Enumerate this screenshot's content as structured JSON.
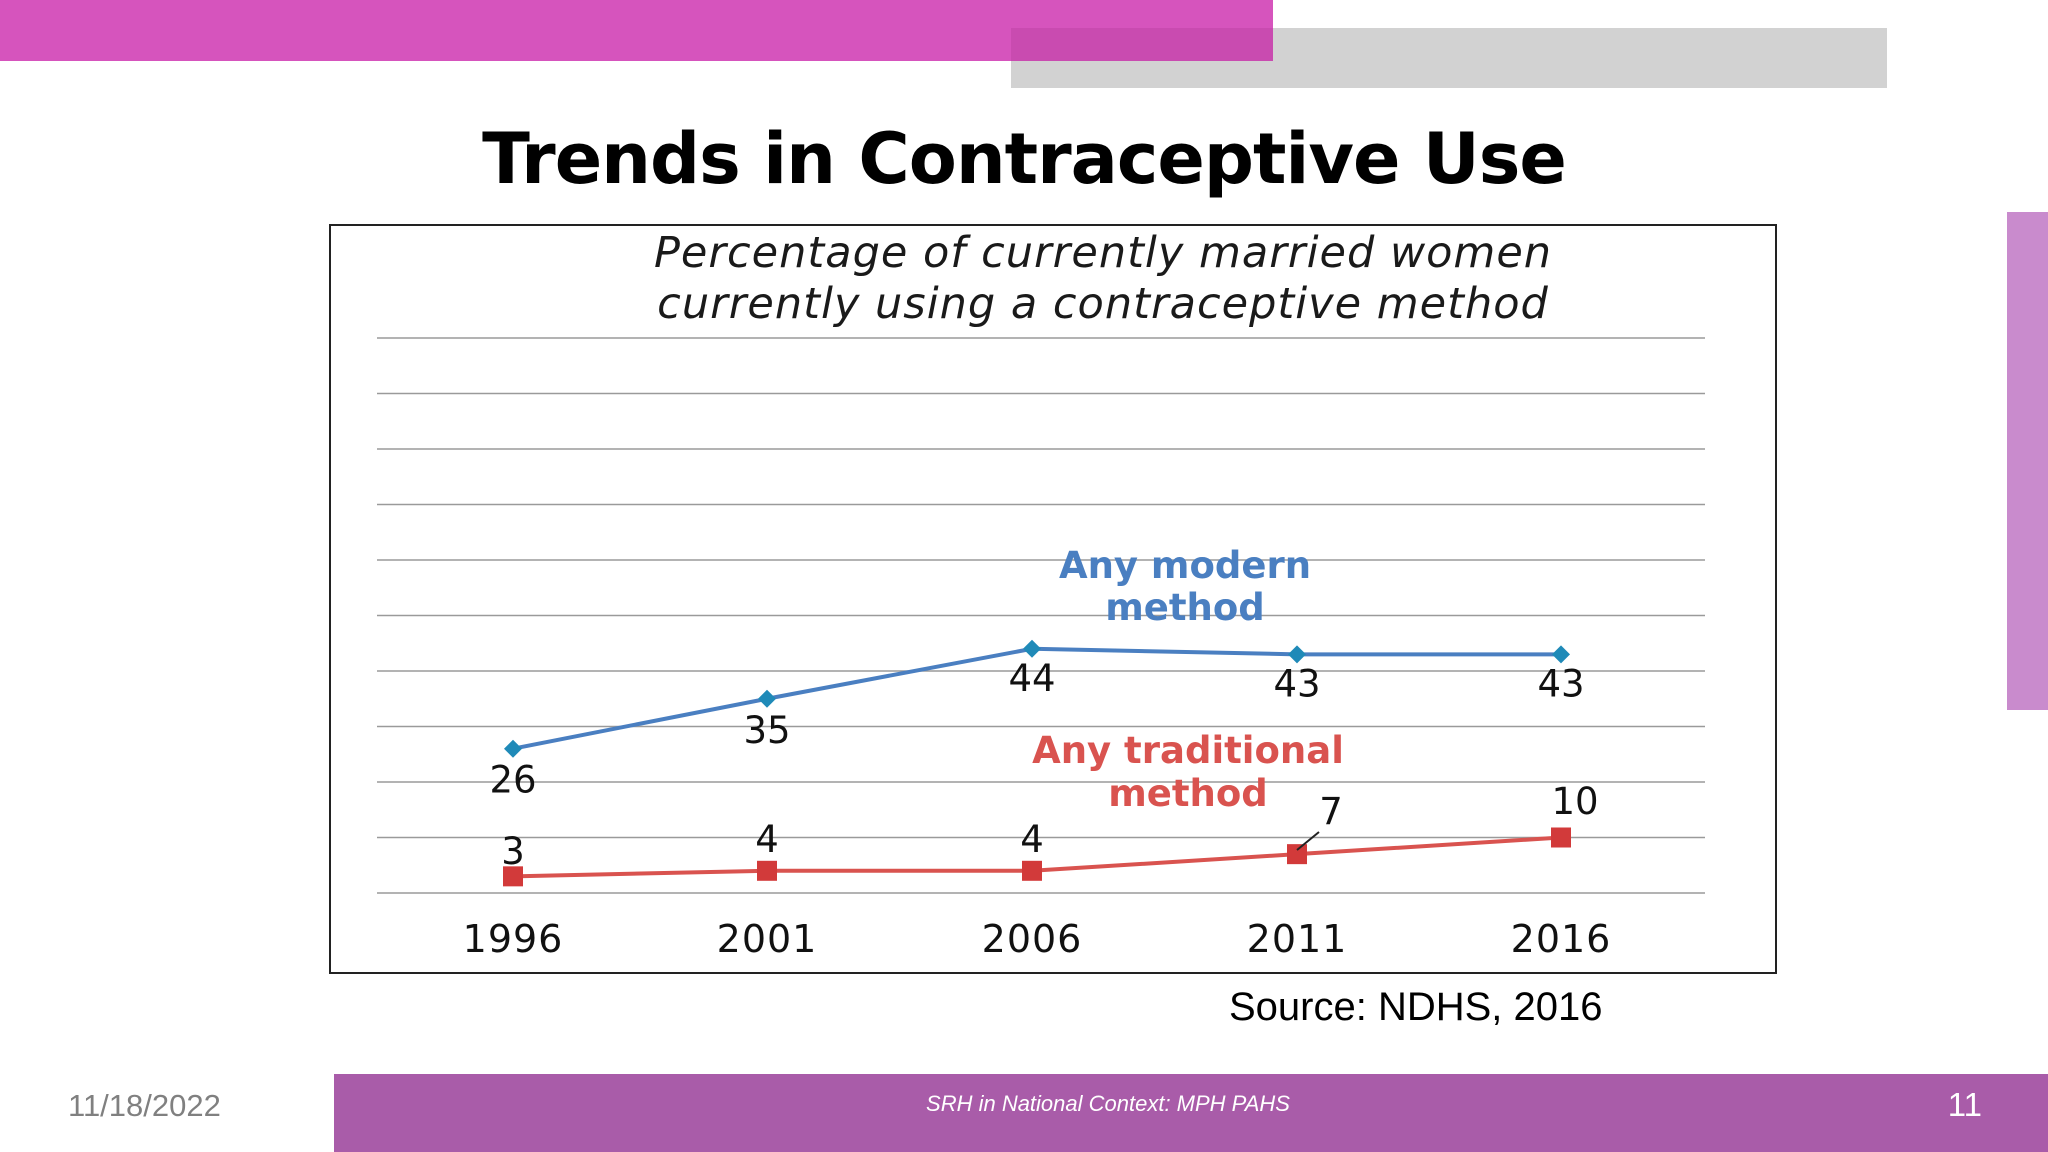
{
  "slide": {
    "title": "Trends in Contraceptive Use",
    "source": "Source:  NDHS, 2016",
    "footer": {
      "date": "11/18/2022",
      "text": "SRH in National Context: MPH PAHS",
      "page": "11"
    }
  },
  "colors": {
    "accent_pink": "#d654bd",
    "accent_gray": "#d2d2d2",
    "footer_purple": "#a95ca9",
    "side_accent": "#c98bcd"
  },
  "chart_data": {
    "type": "line",
    "title": "Percentage of currently married women currently using a contraceptive method",
    "title_lines": [
      "Percentage of currently married women",
      "currently using a contraceptive method"
    ],
    "categories": [
      "1996",
      "2001",
      "2006",
      "2011",
      "2016"
    ],
    "ylim": [
      0,
      100
    ],
    "grid": true,
    "xlabel": "",
    "ylabel": "",
    "series": [
      {
        "name": "Any modern method",
        "name_lines": [
          "Any modern",
          "method"
        ],
        "color": "#4a7fc1",
        "marker_color": "#1f8ab8",
        "marker": "diamond",
        "values": [
          26,
          35,
          44,
          43,
          43
        ]
      },
      {
        "name": "Any traditional method",
        "name_lines": [
          "Any traditional",
          "method"
        ],
        "color": "#d9534f",
        "marker_color": "#d23a3a",
        "marker": "square",
        "values": [
          3,
          4,
          4,
          7,
          10
        ]
      }
    ]
  }
}
